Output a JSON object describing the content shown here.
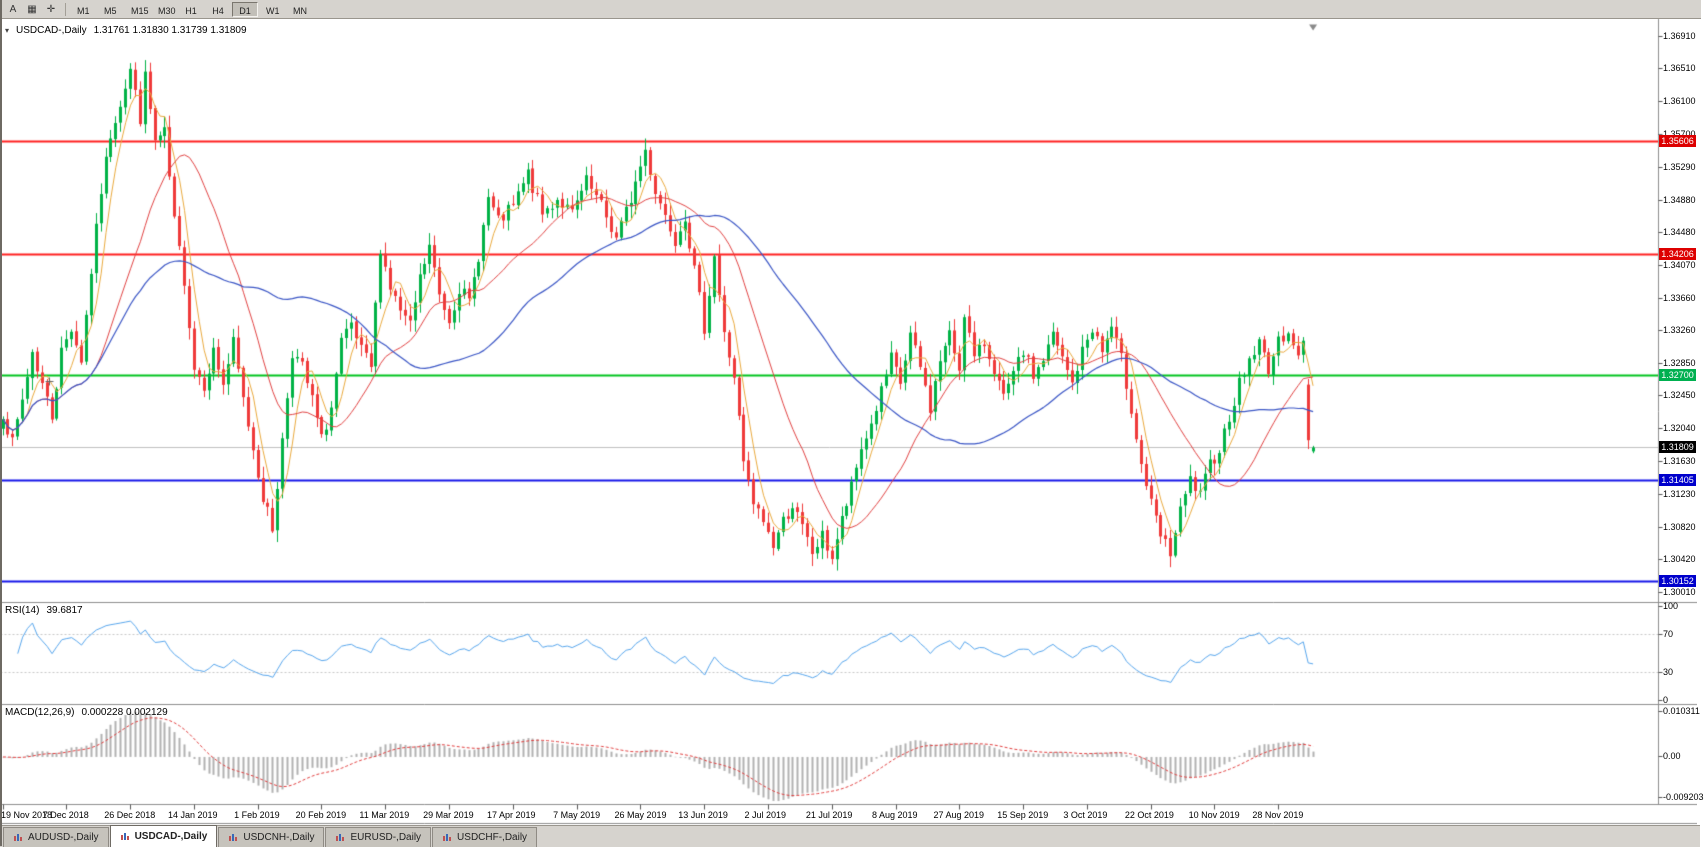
{
  "window": {
    "bg_color": "#d6d3ce",
    "accent_red": "#ff1f1f",
    "accent_green": "#00c41e",
    "accent_blue": "#1414e8"
  },
  "toolbar": {
    "left_icons": [
      {
        "name": "annotation-tool",
        "glyph": "A"
      },
      {
        "name": "chart-type",
        "glyph": "▦"
      },
      {
        "name": "crosshair-tool",
        "glyph": "✛"
      }
    ],
    "timeframes": [
      "M1",
      "M5",
      "M15",
      "M30",
      "H1",
      "H4",
      "D1",
      "W1",
      "MN"
    ],
    "active_timeframe": "D1"
  },
  "chart": {
    "dropdown_glyph": "▾",
    "title_symbol": "USDCAD-,Daily",
    "title_ohlc": "1.31761 1.31830 1.31739 1.31809"
  },
  "chart_data": {
    "type": "candlestick",
    "symbol": "USDCAD",
    "timeframe": "Daily",
    "ohlc_current": {
      "open": 1.31761,
      "high": 1.3183,
      "low": 1.31739,
      "close": 1.31809
    },
    "ylim": [
      1.2989,
      1.3702
    ],
    "y_axis_labels": [
      "1.36910",
      "1.36510",
      "1.36100",
      "1.35700",
      "1.35290",
      "1.34880",
      "1.34480",
      "1.34070",
      "1.33660",
      "1.33260",
      "1.32850",
      "1.32450",
      "1.32040",
      "1.31630",
      "1.31230",
      "1.30820",
      "1.30420",
      "1.30010"
    ],
    "x_labels": [
      "19 Nov 2018",
      "7 Dec 2018",
      "26 Dec 2018",
      "14 Jan 2019",
      "1 Feb 2019",
      "20 Feb 2019",
      "11 Mar 2019",
      "29 Mar 2019",
      "17 Apr 2019",
      "7 May 2019",
      "26 May 2019",
      "13 Jun 2019",
      "2 Jul 2019",
      "21 Jul 2019",
      "8 Aug 2019",
      "27 Aug 2019",
      "15 Sep 2019",
      "3 Oct 2019",
      "22 Oct 2019",
      "10 Nov 2019",
      "28 Nov 2019"
    ],
    "x_label_day_interval": 13,
    "num_candles": 268,
    "candle_up_color": "#00b246",
    "candle_down_color": "#ef3a3a",
    "price_waypoints": [
      [
        0,
        1.3225
      ],
      [
        2,
        1.3185
      ],
      [
        4,
        1.324
      ],
      [
        6,
        1.33
      ],
      [
        8,
        1.326
      ],
      [
        10,
        1.322
      ],
      [
        12,
        1.33
      ],
      [
        14,
        1.333
      ],
      [
        16,
        1.329
      ],
      [
        18,
        1.34
      ],
      [
        20,
        1.35
      ],
      [
        22,
        1.357
      ],
      [
        24,
        1.361
      ],
      [
        26,
        1.365
      ],
      [
        28,
        1.359
      ],
      [
        29,
        1.364
      ],
      [
        31,
        1.356
      ],
      [
        33,
        1.357
      ],
      [
        35,
        1.346
      ],
      [
        37,
        1.339
      ],
      [
        39,
        1.328
      ],
      [
        41,
        1.326
      ],
      [
        43,
        1.33
      ],
      [
        45,
        1.326
      ],
      [
        47,
        1.331
      ],
      [
        49,
        1.324
      ],
      [
        51,
        1.318
      ],
      [
        53,
        1.312
      ],
      [
        55,
        1.308
      ],
      [
        57,
        1.319
      ],
      [
        59,
        1.33
      ],
      [
        61,
        1.328
      ],
      [
        63,
        1.324
      ],
      [
        65,
        1.319
      ],
      [
        67,
        1.323
      ],
      [
        69,
        1.331
      ],
      [
        71,
        1.333
      ],
      [
        73,
        1.33
      ],
      [
        75,
        1.328
      ],
      [
        77,
        1.343
      ],
      [
        79,
        1.338
      ],
      [
        81,
        1.335
      ],
      [
        83,
        1.333
      ],
      [
        85,
        1.339
      ],
      [
        87,
        1.343
      ],
      [
        89,
        1.337
      ],
      [
        91,
        1.334
      ],
      [
        93,
        1.338
      ],
      [
        95,
        1.336
      ],
      [
        97,
        1.342
      ],
      [
        99,
        1.349
      ],
      [
        101,
        1.346
      ],
      [
        104,
        1.348
      ],
      [
        107,
        1.352
      ],
      [
        110,
        1.347
      ],
      [
        113,
        1.349
      ],
      [
        116,
        1.347
      ],
      [
        119,
        1.351
      ],
      [
        122,
        1.348
      ],
      [
        125,
        1.344
      ],
      [
        128,
        1.349
      ],
      [
        131,
        1.355
      ],
      [
        133,
        1.35
      ],
      [
        135,
        1.347
      ],
      [
        137,
        1.344
      ],
      [
        139,
        1.347
      ],
      [
        141,
        1.34
      ],
      [
        143,
        1.333
      ],
      [
        145,
        1.342
      ],
      [
        147,
        1.332
      ],
      [
        149,
        1.327
      ],
      [
        151,
        1.316
      ],
      [
        153,
        1.311
      ],
      [
        155,
        1.309
      ],
      [
        157,
        1.306
      ],
      [
        159,
        1.309
      ],
      [
        161,
        1.311
      ],
      [
        163,
        1.308
      ],
      [
        165,
        1.305
      ],
      [
        167,
        1.307
      ],
      [
        169,
        1.3045
      ],
      [
        171,
        1.309
      ],
      [
        173,
        1.313
      ],
      [
        175,
        1.318
      ],
      [
        177,
        1.321
      ],
      [
        179,
        1.325
      ],
      [
        181,
        1.329
      ],
      [
        183,
        1.326
      ],
      [
        185,
        1.332
      ],
      [
        187,
        1.328
      ],
      [
        189,
        1.323
      ],
      [
        191,
        1.329
      ],
      [
        193,
        1.332
      ],
      [
        195,
        1.328
      ],
      [
        196,
        1.335
      ],
      [
        198,
        1.329
      ],
      [
        200,
        1.331
      ],
      [
        202,
        1.328
      ],
      [
        204,
        1.324
      ],
      [
        206,
        1.327
      ],
      [
        208,
        1.33
      ],
      [
        210,
        1.327
      ],
      [
        212,
        1.329
      ],
      [
        214,
        1.332
      ],
      [
        216,
        1.329
      ],
      [
        218,
        1.326
      ],
      [
        220,
        1.33
      ],
      [
        222,
        1.333
      ],
      [
        224,
        1.33
      ],
      [
        226,
        1.333
      ],
      [
        228,
        1.329
      ],
      [
        230,
        1.323
      ],
      [
        232,
        1.316
      ],
      [
        234,
        1.311
      ],
      [
        236,
        1.307
      ],
      [
        238,
        1.305
      ],
      [
        240,
        1.31
      ],
      [
        242,
        1.314
      ],
      [
        244,
        1.312
      ],
      [
        246,
        1.316
      ],
      [
        248,
        1.318
      ],
      [
        250,
        1.322
      ],
      [
        252,
        1.326
      ],
      [
        254,
        1.329
      ],
      [
        256,
        1.331
      ],
      [
        258,
        1.328
      ],
      [
        260,
        1.331
      ],
      [
        262,
        1.333
      ],
      [
        264,
        1.329
      ],
      [
        265,
        1.331
      ],
      [
        266,
        1.326
      ],
      [
        267,
        1.3181
      ]
    ],
    "levels": [
      {
        "price": 1.35606,
        "label": "1.35606",
        "color": "#ff1f1f",
        "badge": "#dd0000"
      },
      {
        "price": 1.34206,
        "label": "1.34206",
        "color": "#ff1f1f",
        "badge": "#dd0000"
      },
      {
        "price": 1.327,
        "label": "1.32700",
        "color": "#00c41e",
        "badge": "#00b050"
      },
      {
        "price": 1.31405,
        "label": "1.31405",
        "color": "#1414e8",
        "badge": "#0000cc"
      },
      {
        "price": 1.30152,
        "label": "1.30152",
        "color": "#1414e8",
        "badge": "#0000cc"
      }
    ],
    "current_price": {
      "value": 1.31809,
      "label": "1.31809",
      "line_color": "#bfbfbf",
      "badge": "#000000"
    },
    "moving_averages": [
      {
        "period": 5,
        "color": "#e9a93d",
        "width": 1
      },
      {
        "period": 20,
        "color": "#e04040",
        "width": 1
      },
      {
        "period": 50,
        "color": "#3a55c5",
        "width": 1.2
      }
    ],
    "rsi": {
      "title": "RSI(14)",
      "value": "39.6817",
      "period": 14,
      "color": "#56a5ec",
      "axis_labels": [
        "100",
        "70",
        "30",
        "0"
      ],
      "guide_levels": [
        70,
        30
      ]
    },
    "macd": {
      "title": "MACD(12,26,9)",
      "values": "0.000228 0.002129",
      "fast": 12,
      "slow": 26,
      "signal": 9,
      "hist_color": "#b2b2b2",
      "signal_color": "#e03c3c",
      "axis_labels": [
        "0.010311",
        "0.00",
        "-0.009203"
      ]
    },
    "render_seed": 7
  },
  "tabs": [
    {
      "label": "AUDUSD-,Daily",
      "active": false
    },
    {
      "label": "USDCAD-,Daily",
      "active": true
    },
    {
      "label": "USDCNH-,Daily",
      "active": false
    },
    {
      "label": "EURUSD-,Daily",
      "active": false
    },
    {
      "label": "USDCHF-,Daily",
      "active": false
    }
  ]
}
